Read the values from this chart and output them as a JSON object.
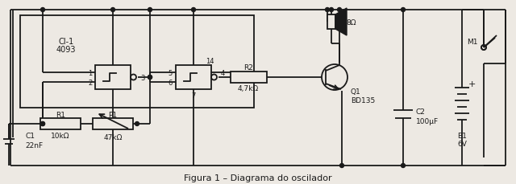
{
  "bg_color": "#ede9e3",
  "line_color": "#1a1a1a",
  "lw": 1.3,
  "title": "Figura 1 – Diagrama do oscilador",
  "labels": {
    "CI1_line1": "CI-1",
    "CI1_line2": "4093",
    "R1_label": "R1",
    "R1_val": "10kΩ",
    "P1_label": "P1",
    "P1_val": "47kΩ",
    "C1_label": "C1",
    "C1_val": "22nF",
    "R2_label": "R2",
    "R2_val": "4,7kΩ",
    "Q1_label": "Q1",
    "Q1_val": "BD135",
    "spk_label": "8Ω",
    "C2_label": "C2",
    "C2_val": "100μF",
    "B1_label": "B1",
    "B1_val": "6V",
    "M1_label": "M1",
    "pin1": "1",
    "pin2": "2",
    "pin3": "3",
    "pin4": "4",
    "pin5": "5",
    "pin6": "6",
    "pin7": "7",
    "pin14": "14"
  }
}
